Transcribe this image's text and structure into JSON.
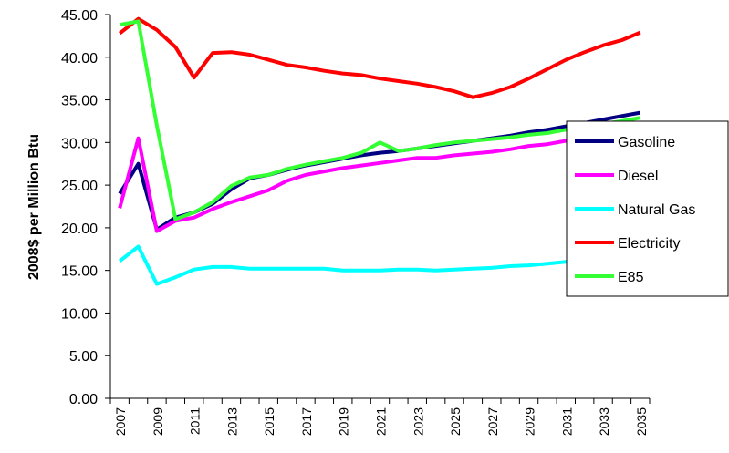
{
  "chart_data": {
    "type": "line",
    "y_label": "2008$ per Million Btu",
    "categories": [
      "2007",
      null,
      "2009",
      null,
      "2011",
      null,
      "2013",
      null,
      "2015",
      null,
      "2017",
      null,
      "2019",
      null,
      "2021",
      null,
      "2023",
      null,
      "2025",
      null,
      "2027",
      null,
      "2029",
      null,
      "2031",
      null,
      "2033",
      null,
      "2035"
    ],
    "ylim": [
      0,
      45
    ],
    "yticks": [
      {
        "value": 0,
        "label": "0.00"
      },
      {
        "value": 5,
        "label": "5.00"
      },
      {
        "value": 10,
        "label": "10.00"
      },
      {
        "value": 15,
        "label": "15.00"
      },
      {
        "value": 20,
        "label": "20.00"
      },
      {
        "value": 25,
        "label": "25.00"
      },
      {
        "value": 30,
        "label": "30.00"
      },
      {
        "value": 35,
        "label": "35.00"
      },
      {
        "value": 40,
        "label": "40.00"
      },
      {
        "value": 45,
        "label": "45.00"
      }
    ],
    "legend": "right",
    "series": [
      {
        "name": "Gasoline",
        "color": "#000080",
        "values": [
          24,
          27.5,
          19.8,
          21.2,
          21.8,
          22.8,
          24.5,
          25.8,
          26.2,
          26.8,
          27.3,
          27.7,
          28.1,
          28.5,
          28.8,
          29.0,
          29.3,
          29.6,
          29.9,
          30.2,
          30.5,
          30.8,
          31.2,
          31.5,
          31.9,
          32.3,
          32.7,
          33.1,
          33.5
        ]
      },
      {
        "name": "Diesel",
        "color": "#ff00ff",
        "values": [
          22.3,
          30.5,
          19.6,
          20.8,
          21.2,
          22.2,
          23.0,
          23.7,
          24.4,
          25.5,
          26.2,
          26.6,
          27.0,
          27.3,
          27.6,
          27.9,
          28.2,
          28.2,
          28.5,
          28.7,
          28.9,
          29.2,
          29.6,
          29.8,
          30.2,
          30.6,
          31.0,
          31.3,
          31.7
        ]
      },
      {
        "name": "Natural Gas",
        "color": "#00ffff",
        "values": [
          16.1,
          17.8,
          13.4,
          14.2,
          15.1,
          15.4,
          15.4,
          15.2,
          15.2,
          15.2,
          15.2,
          15.2,
          15.0,
          15.0,
          15.0,
          15.1,
          15.1,
          15.0,
          15.1,
          15.2,
          15.3,
          15.5,
          15.6,
          15.8,
          16.0,
          16.1,
          16.1,
          16.2,
          16.3
        ]
      },
      {
        "name": "Electricity",
        "color": "#ff0000",
        "values": [
          42.8,
          44.5,
          43.2,
          41.2,
          37.6,
          40.5,
          40.6,
          40.3,
          39.7,
          39.1,
          38.8,
          38.4,
          38.1,
          37.9,
          37.5,
          37.2,
          36.9,
          36.5,
          36.0,
          35.3,
          35.8,
          36.5,
          37.5,
          38.6,
          39.7,
          40.6,
          41.4,
          42.0,
          42.9
        ]
      },
      {
        "name": "E85",
        "color": "#33ff33",
        "values": [
          43.8,
          44.2,
          32.0,
          21.0,
          21.8,
          23.0,
          24.9,
          25.9,
          26.2,
          26.9,
          27.4,
          27.8,
          28.2,
          28.8,
          30.0,
          29.0,
          29.3,
          29.7,
          30.0,
          30.2,
          30.4,
          30.6,
          30.9,
          31.1,
          31.5,
          31.8,
          32.2,
          32.5,
          32.9
        ]
      }
    ]
  }
}
